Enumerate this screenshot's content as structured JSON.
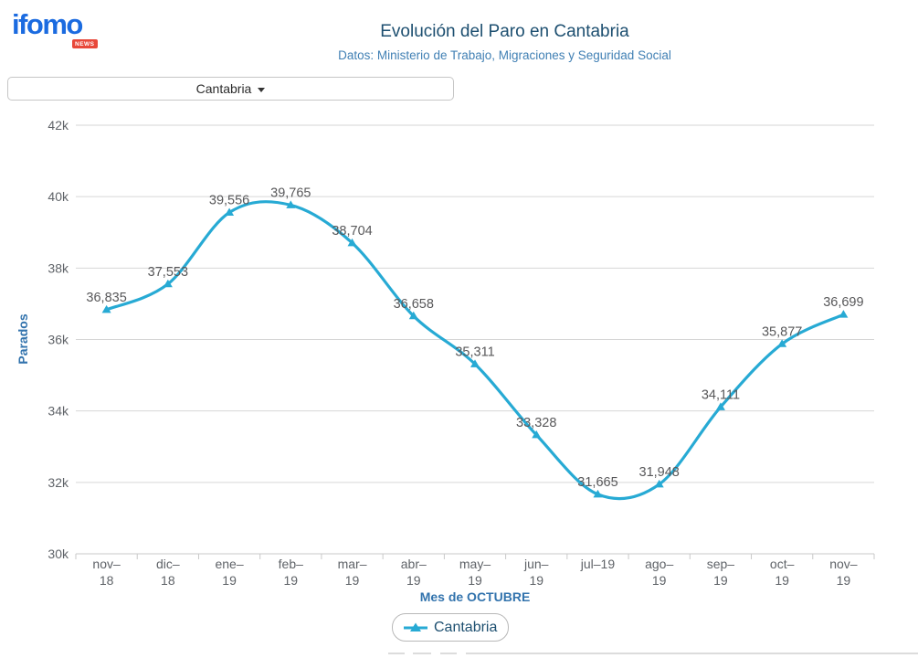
{
  "brand": {
    "logo_text": "ifomo",
    "logo_badge": "NEWS"
  },
  "header": {
    "title": "Evolución del Paro en Cantabria",
    "subtitle": "Datos: Ministerio de Trabajo, Migraciones y Seguridad Social"
  },
  "region_selector": {
    "value": "Cantabria"
  },
  "chart_data": {
    "type": "line",
    "title": "Evolución del Paro en Cantabria",
    "xlabel": "Mes de OCTUBRE",
    "ylabel": "Parados",
    "ylim": [
      30000,
      42000
    ],
    "ytick_step": 2000,
    "ytick_labels": [
      "30k",
      "32k",
      "34k",
      "36k",
      "38k",
      "40k",
      "42k"
    ],
    "categories": [
      [
        "nov–",
        "18"
      ],
      [
        "dic–",
        "18"
      ],
      [
        "ene–",
        "19"
      ],
      [
        "feb–",
        "19"
      ],
      [
        "mar–",
        "19"
      ],
      [
        "abr–",
        "19"
      ],
      [
        "may–",
        "19"
      ],
      [
        "jun–",
        "19"
      ],
      [
        "jul–19"
      ],
      [
        "ago–",
        "19"
      ],
      [
        "sep–",
        "19"
      ],
      [
        "oct–",
        "19"
      ],
      [
        "nov–",
        "19"
      ]
    ],
    "series": [
      {
        "name": "Cantabria",
        "values": [
          36835,
          37553,
          39556,
          39765,
          38704,
          36658,
          35311,
          33328,
          31665,
          31948,
          34111,
          35877,
          36699
        ],
        "labels": [
          "36,835",
          "37,553",
          "39,556",
          "39,765",
          "38,704",
          "36,658",
          "35,311",
          "33,328",
          "31,665",
          "31,948",
          "34,111",
          "35,877",
          "36,699"
        ],
        "color": "#27aad4"
      }
    ],
    "grid": true,
    "legend_position": "bottom"
  },
  "legend": {
    "items": [
      {
        "label": "Cantabria",
        "marker_color": "#27aad4"
      }
    ]
  },
  "colors": {
    "line": "#27aad4",
    "gridline": "#d6d6d6",
    "axis_line": "#c9c9c9",
    "tick_label": "#5f6368",
    "data_label": "#58585a",
    "title": "#1d4f70",
    "subtitle": "#4180b4",
    "axis_title": "#3273ad",
    "legend_border": "#b8b8b8",
    "logo_blue": "#1b6be0",
    "logo_badge_red": "#e8483a"
  }
}
